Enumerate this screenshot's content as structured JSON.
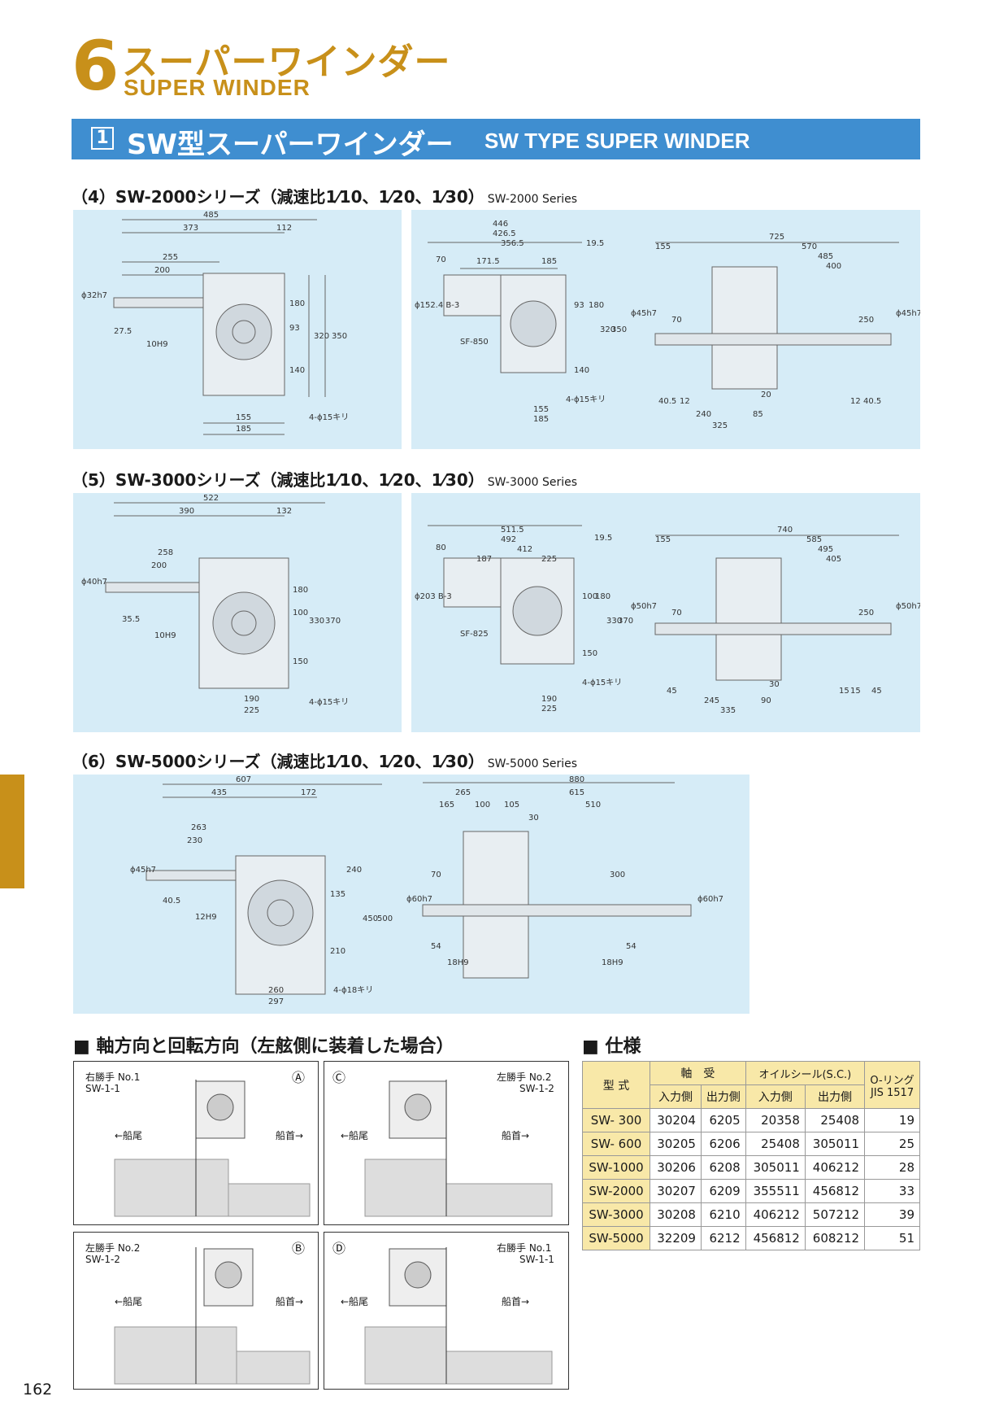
{
  "chapter": {
    "number": "6",
    "title_jp": "スーパーワインダー",
    "title_en": "SUPER WINDER"
  },
  "section": {
    "number": "1",
    "title_jp": "SW型スーパーワインダー",
    "title_en": "SW TYPE SUPER WINDER"
  },
  "series": [
    {
      "head": "（4）SW-2000シリーズ（減速比",
      "ratio_labels": [
        "1⁄10",
        "1⁄20",
        "1⁄30"
      ],
      "en": "SW-2000 Series",
      "left_dims": [
        "485",
        "373",
        "112",
        "255",
        "200",
        "ϕ32h7",
        "27.5",
        "10H9",
        "93",
        "180",
        "320",
        "350",
        "140",
        "155",
        "185",
        "4-ϕ15キリ"
      ],
      "mid_dims": [
        "446",
        "426.5",
        "356.5",
        "70",
        "171.5",
        "185",
        "19.5",
        "ϕ152.4 B-3",
        "SF-850",
        "93",
        "180",
        "320",
        "350",
        "140",
        "155",
        "185",
        "4-ϕ15キリ"
      ],
      "right_dims": [
        "725",
        "155",
        "570",
        "485",
        "400",
        "ϕ45h7",
        "70",
        "250",
        "ϕ45h7",
        "40.5",
        "12",
        "20",
        "12",
        "40.5",
        "240",
        "85",
        "325"
      ]
    },
    {
      "head": "（5）SW-3000シリーズ（減速比",
      "ratio_labels": [
        "1⁄10",
        "1⁄20",
        "1⁄30"
      ],
      "en": "SW-3000 Series",
      "left_dims": [
        "522",
        "390",
        "132",
        "258",
        "200",
        "ϕ40h7",
        "35.5",
        "10H9",
        "100",
        "180",
        "330",
        "370",
        "150",
        "190",
        "225",
        "4-ϕ15キリ"
      ],
      "mid_dims": [
        "511.5",
        "492",
        "412",
        "80",
        "187",
        "225",
        "19.5",
        "ϕ203 B-3",
        "SF-825",
        "100",
        "180",
        "330",
        "370",
        "150",
        "190",
        "225",
        "4-ϕ15キリ"
      ],
      "right_dims": [
        "740",
        "155",
        "585",
        "495",
        "405",
        "ϕ50h7",
        "70",
        "250",
        "ϕ50h7",
        "45",
        "15",
        "30",
        "15",
        "45",
        "245",
        "90",
        "335"
      ]
    },
    {
      "head": "（6）SW-5000シリーズ（減速比",
      "ratio_labels": [
        "1⁄10",
        "1⁄20",
        "1⁄30"
      ],
      "en": "SW-5000 Series",
      "left_dims": [
        "607",
        "435",
        "172",
        "263",
        "230",
        "ϕ45h7",
        "40.5",
        "12H9",
        "135",
        "240",
        "450",
        "500",
        "210",
        "260",
        "297",
        "4-ϕ18キリ"
      ],
      "right_dims": [
        "880",
        "265",
        "615",
        "165",
        "100",
        "105",
        "510",
        "30",
        "70",
        "300",
        "ϕ60h7",
        "ϕ60h7",
        "54",
        "18H9",
        "54",
        "18H9"
      ]
    }
  ],
  "rotation": {
    "title": "■ 軸方向と回転方向（左舷側に装着した場合）",
    "boxes": [
      {
        "mark": "Ⓐ",
        "hand": "右勝手 No.1",
        "code": "SW-1-1",
        "stern": "←船尾",
        "bow": "船首→"
      },
      {
        "mark": "Ⓒ",
        "hand": "左勝手 No.2",
        "code": "SW-1-2",
        "stern": "←船尾",
        "bow": "船首→"
      },
      {
        "mark": "Ⓑ",
        "hand": "左勝手 No.2",
        "code": "SW-1-2",
        "stern": "←船尾",
        "bow": "船首→"
      },
      {
        "mark": "Ⓓ",
        "hand": "右勝手 No.1",
        "code": "SW-1-1",
        "stern": "←船尾",
        "bow": "船首→"
      }
    ]
  },
  "spec": {
    "title": "■ 仕様",
    "headers": {
      "model": "型 式",
      "bearing": "軸　受",
      "oil_seal": "オイルシール(S.C.)",
      "oring": "O-リング",
      "oring_std": "JIS 1517",
      "input": "入力側",
      "output": "出力側"
    },
    "rows": [
      [
        "SW- 300",
        "30204",
        "6205",
        "20358",
        "25408",
        "19"
      ],
      [
        "SW- 600",
        "30205",
        "6206",
        "25408",
        "305011",
        "25"
      ],
      [
        "SW-1000",
        "30206",
        "6208",
        "305011",
        "406212",
        "28"
      ],
      [
        "SW-2000",
        "30207",
        "6209",
        "355511",
        "456812",
        "33"
      ],
      [
        "SW-3000",
        "30208",
        "6210",
        "406212",
        "507212",
        "39"
      ],
      [
        "SW-5000",
        "32209",
        "6212",
        "456812",
        "608212",
        "51"
      ]
    ]
  },
  "page_number": "162"
}
